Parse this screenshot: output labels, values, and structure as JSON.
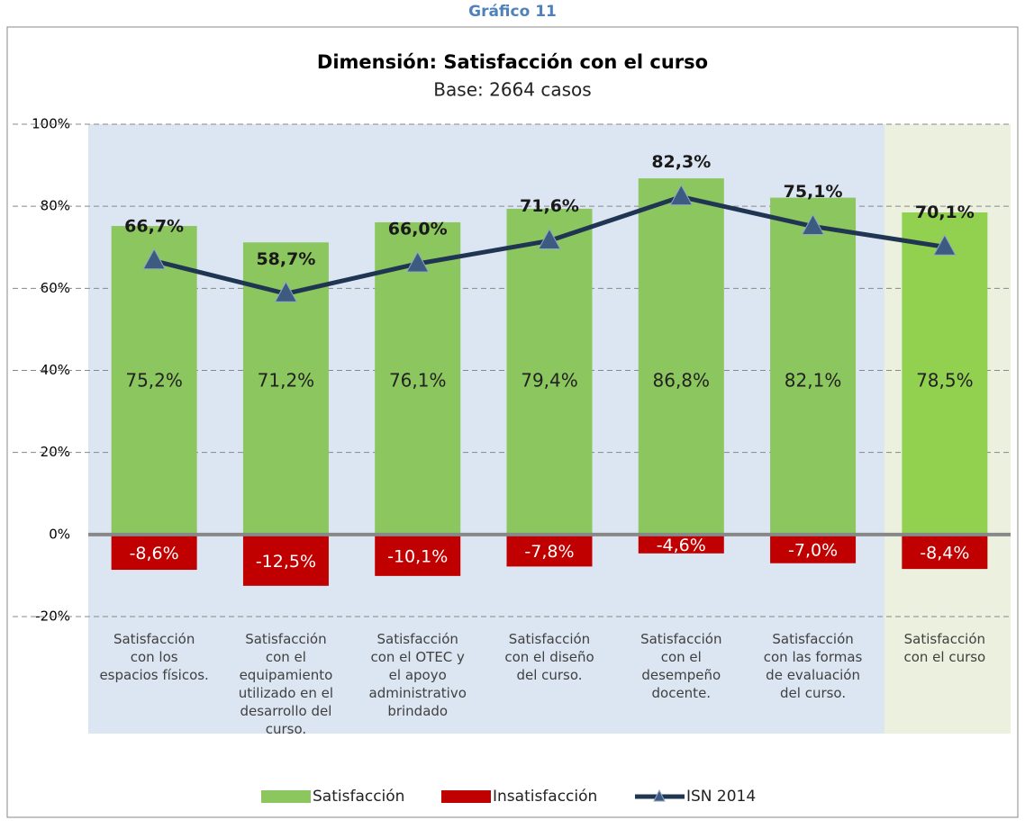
{
  "header": "Gráfico 11",
  "chart_data": {
    "type": "bar",
    "title": "Dimensión: Satisfacción con el curso",
    "subtitle": "Base: 2664 casos",
    "categories": [
      [
        "Satisfacción",
        "con los",
        "espacios físicos."
      ],
      [
        "Satisfacción",
        "con el",
        "equipamiento",
        "utilizado en el",
        "desarrollo del",
        "curso."
      ],
      [
        "Satisfacción",
        "con el OTEC y",
        "el apoyo",
        "administrativo",
        "brindado"
      ],
      [
        "Satisfacción",
        "con el diseño",
        "del curso."
      ],
      [
        "Satisfacción",
        "con el",
        "desempeño",
        "docente."
      ],
      [
        "Satisfacción",
        "con las formas",
        "de evaluación",
        "del curso."
      ],
      [
        "Satisfacción",
        "con el curso"
      ]
    ],
    "series": [
      {
        "name": "Satisfacción",
        "type": "bar",
        "color": "#8cc65e",
        "colors": [
          "#8cc65e",
          "#8cc65e",
          "#8cc65e",
          "#8cc65e",
          "#8cc65e",
          "#8cc65e",
          "#92d050"
        ],
        "values": [
          75.2,
          71.2,
          76.1,
          79.4,
          86.8,
          82.1,
          78.5
        ],
        "value_labels": [
          "75,2%",
          "71,2%",
          "76,1%",
          "79,4%",
          "86,8%",
          "82,1%",
          "78,5%"
        ]
      },
      {
        "name": "Insatisfacción",
        "type": "bar",
        "color": "#c00000",
        "values": [
          -8.6,
          -12.5,
          -10.1,
          -7.8,
          -4.6,
          -7.0,
          -8.4
        ],
        "value_labels": [
          "-8,6%",
          "-12,5%",
          "-10,1%",
          "-7,8%",
          "-4,6%",
          "-7,0%",
          "-8,4%"
        ]
      },
      {
        "name": "ISN 2014",
        "type": "line",
        "color": "#1f3552",
        "marker_color": "#3d5a80",
        "values": [
          66.7,
          58.7,
          66.0,
          71.6,
          82.3,
          75.1,
          70.1
        ],
        "value_labels": [
          "66,7%",
          "58,7%",
          "66,0%",
          "71,6%",
          "82,3%",
          "75,1%",
          "70,1%"
        ]
      }
    ],
    "ylim": [
      -20,
      100
    ],
    "yticks": [
      {
        "value": -20,
        "label": "-20%"
      },
      {
        "value": 0,
        "label": "0%"
      },
      {
        "value": 20,
        "label": "20%"
      },
      {
        "value": 40,
        "label": "40%"
      },
      {
        "value": 60,
        "label": "60%"
      },
      {
        "value": 80,
        "label": "80%"
      },
      {
        "value": 100,
        "label": "100%"
      }
    ],
    "grid": true,
    "legend": "bottom"
  }
}
